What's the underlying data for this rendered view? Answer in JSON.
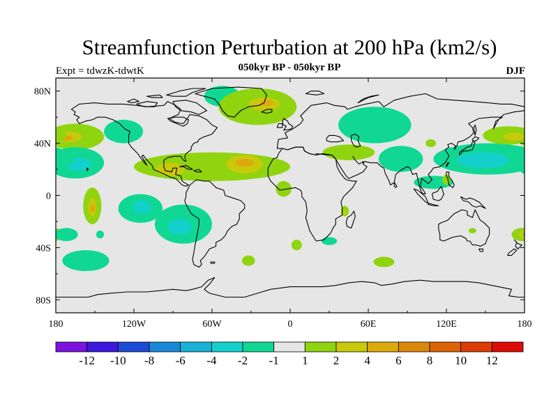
{
  "title": "Streamfunction Perturbation at 200 hPa (km2/s)",
  "subtitle": "050kyr BP - 050kyr BP",
  "experiment": "Expt = tdwzK-tdwtK",
  "season": "DJF",
  "map": {
    "projection": "cylindrical equidistant",
    "lon_range": [
      -180,
      180
    ],
    "lat_range": [
      -90,
      90
    ],
    "background_color": "#e6e6e6"
  },
  "chart_data": {
    "type": "filled contour map",
    "variable": "Streamfunction perturbation",
    "level": "200 hPa",
    "units": "km2/s",
    "x_ticks": [
      {
        "lon": -180,
        "label": "180"
      },
      {
        "lon": -120,
        "label": "120W"
      },
      {
        "lon": -60,
        "label": "60W"
      },
      {
        "lon": 0,
        "label": "0"
      },
      {
        "lon": 60,
        "label": "60E"
      },
      {
        "lon": 120,
        "label": "120E"
      },
      {
        "lon": 180,
        "label": "180"
      }
    ],
    "y_ticks": [
      {
        "lat": 80,
        "label": "80N"
      },
      {
        "lat": 40,
        "label": "40N"
      },
      {
        "lat": 0,
        "label": "0"
      },
      {
        "lat": -40,
        "label": "40S"
      },
      {
        "lat": -80,
        "label": "80S"
      }
    ],
    "colorbar": {
      "colors": [
        "#7b14dc",
        "#3b18dc",
        "#1d4bd6",
        "#1a88d8",
        "#1ab3d6",
        "#14d0cc",
        "#10d894",
        "#e6e6e6",
        "#90d410",
        "#c9c90c",
        "#dcaa0c",
        "#dc880a",
        "#dc6406",
        "#dc3c06",
        "#dc0c06"
      ],
      "labels": [
        "-12",
        "-10",
        "-8",
        "-6",
        "-4",
        "-2",
        "-1",
        "1",
        "2",
        "4",
        "6",
        "8",
        "10",
        "12"
      ]
    },
    "anomalies": [
      {
        "name": "greenland-negative",
        "lon": -52,
        "lat": 76,
        "rlon": 14,
        "rlat": 8,
        "level": -1
      },
      {
        "name": "n-atlantic-positive",
        "lon": -25,
        "lat": 68,
        "rlon": 30,
        "rlat": 14,
        "level": 1
      },
      {
        "name": "n-atlantic-positive-core",
        "lon": -20,
        "lat": 70,
        "rlon": 12,
        "rlat": 5,
        "level": 2
      },
      {
        "name": "n-atlantic-positive-max",
        "lon": -18,
        "lat": 71,
        "rlon": 5,
        "rlat": 2.5,
        "level": 4
      },
      {
        "name": "siberia-negative",
        "lon": 65,
        "lat": 54,
        "rlon": 28,
        "rlat": 14,
        "level": -1
      },
      {
        "name": "w-canada-negative",
        "lon": -128,
        "lat": 49,
        "rlon": 15,
        "rlat": 9,
        "level": -1
      },
      {
        "name": "ne-pacific-positive",
        "lon": -165,
        "lat": 45,
        "rlon": 22,
        "rlat": 10,
        "level": 1
      },
      {
        "name": "ne-pacific-positive-core",
        "lon": -170,
        "lat": 45,
        "rlon": 10,
        "rlat": 4,
        "level": 2
      },
      {
        "name": "ne-pacific-positive-max",
        "lon": -172,
        "lat": 44,
        "rlon": 5,
        "rlat": 2,
        "level": 4
      },
      {
        "name": "ne-pacific-negative",
        "lon": -165,
        "lat": 25,
        "rlon": 22,
        "rlat": 12,
        "level": -1
      },
      {
        "name": "ne-pacific-negative-core",
        "lon": -163,
        "lat": 24,
        "rlon": 10,
        "rlat": 5,
        "level": -2
      },
      {
        "name": "central-pacific-positive",
        "lon": -152,
        "lat": -8,
        "rlon": 7,
        "rlat": 14,
        "level": 1
      },
      {
        "name": "central-pacific-positive-core",
        "lon": -152,
        "lat": -9,
        "rlon": 3,
        "rlat": 7,
        "level": 2
      },
      {
        "name": "central-pacific-positive-max",
        "lon": -152,
        "lat": -10,
        "rlon": 2,
        "rlat": 3,
        "level": 4
      },
      {
        "name": "se-pacific-negative",
        "lon": -115,
        "lat": -10,
        "rlon": 17,
        "rlat": 11,
        "level": -1
      },
      {
        "name": "se-pacific-negative-core",
        "lon": -114,
        "lat": -9,
        "rlon": 7,
        "rlat": 5,
        "level": -2
      },
      {
        "name": "s-america-negative",
        "lon": -82,
        "lat": -22,
        "rlon": 22,
        "rlat": 15,
        "level": -1
      },
      {
        "name": "s-america-negative-core",
        "lon": -85,
        "lat": -24,
        "rlon": 9,
        "rlat": 6,
        "level": -2
      },
      {
        "name": "tropical-atlantic-positive",
        "lon": -60,
        "lat": 22,
        "rlon": 60,
        "rlat": 11,
        "level": 1
      },
      {
        "name": "tropical-atlantic-positive-core",
        "lon": -35,
        "lat": 24,
        "rlon": 14,
        "rlat": 7,
        "level": 2
      },
      {
        "name": "tropical-atlantic-positive-max",
        "lon": -35,
        "lat": 25,
        "rlon": 7,
        "rlat": 3,
        "level": 4
      },
      {
        "name": "caribbean-positive-core",
        "lon": -92,
        "lat": 20,
        "rlon": 11,
        "rlat": 5,
        "level": 2
      },
      {
        "name": "atlantic-positive-tail",
        "lon": -5,
        "lat": 5,
        "rlon": 6,
        "rlat": 6,
        "level": 1
      },
      {
        "name": "mediterranean-positive",
        "lon": 45,
        "lat": 33,
        "rlon": 20,
        "rlat": 6,
        "level": 1
      },
      {
        "name": "arabia-negative",
        "lon": 85,
        "lat": 28,
        "rlon": 17,
        "rlat": 10,
        "level": -1
      },
      {
        "name": "w-pacific-negative",
        "lon": 152,
        "lat": 28,
        "rlon": 42,
        "rlat": 12,
        "level": -1
      },
      {
        "name": "w-pacific-negative-core",
        "lon": 148,
        "lat": 27,
        "rlon": 20,
        "rlat": 6,
        "level": -2
      },
      {
        "name": "china-positive",
        "lon": 108,
        "lat": 40,
        "rlon": 4,
        "rlat": 3,
        "level": 1
      },
      {
        "name": "n-pacific-positive",
        "lon": 168,
        "lat": 46,
        "rlon": 20,
        "rlat": 7,
        "level": 1
      },
      {
        "name": "n-pacific-positive-core",
        "lon": 172,
        "lat": 45,
        "rlon": 8,
        "rlat": 3,
        "level": 2
      },
      {
        "name": "maritime-continent-negative",
        "lon": 110,
        "lat": 10,
        "rlon": 15,
        "rlat": 5,
        "level": -1
      },
      {
        "name": "philippines-positive",
        "lon": 120,
        "lat": 12,
        "rlon": 3,
        "rlat": 4,
        "level": 1
      },
      {
        "name": "s-pacific-negative",
        "lon": -157,
        "lat": -50,
        "rlon": 18,
        "rlat": 8,
        "level": -1
      },
      {
        "name": "se-pacific-negative-small",
        "lon": -146,
        "lat": -30,
        "rlon": 3,
        "rlat": 3,
        "level": -1
      },
      {
        "name": "s-atlantic-positive",
        "lon": -32,
        "lat": -50,
        "rlon": 5,
        "rlat": 4,
        "level": 1
      },
      {
        "name": "s-indian-positive",
        "lon": 5,
        "lat": -38,
        "rlon": 4,
        "rlat": 4,
        "level": 1
      },
      {
        "name": "s-indian-negative",
        "lon": 30,
        "lat": -35,
        "rlon": 6,
        "rlat": 3,
        "level": -1
      },
      {
        "name": "s-indian-positive-2",
        "lon": 72,
        "lat": -51,
        "rlon": 8,
        "rlat": 4,
        "level": 1
      },
      {
        "name": "madagascar-positive",
        "lon": 42,
        "lat": -12,
        "rlon": 3,
        "rlat": 4,
        "level": 1
      },
      {
        "name": "madagascar-positive-core",
        "lon": 42,
        "lat": -13,
        "rlon": 1.5,
        "rlat": 2,
        "level": 2
      },
      {
        "name": "australia-positive",
        "lon": 178,
        "lat": -30,
        "rlon": 8,
        "rlat": 5,
        "level": 1
      },
      {
        "name": "australia-positive-core",
        "lon": 180,
        "lat": -30,
        "rlon": 4,
        "rlat": 3,
        "level": 2
      },
      {
        "name": "tasman-positive",
        "lon": 140,
        "lat": -27,
        "rlon": 3,
        "rlat": 2,
        "level": 1
      },
      {
        "name": "e-pacific-negative",
        "lon": -172,
        "lat": -30,
        "rlon": 9,
        "rlat": 5,
        "level": -1
      }
    ]
  }
}
